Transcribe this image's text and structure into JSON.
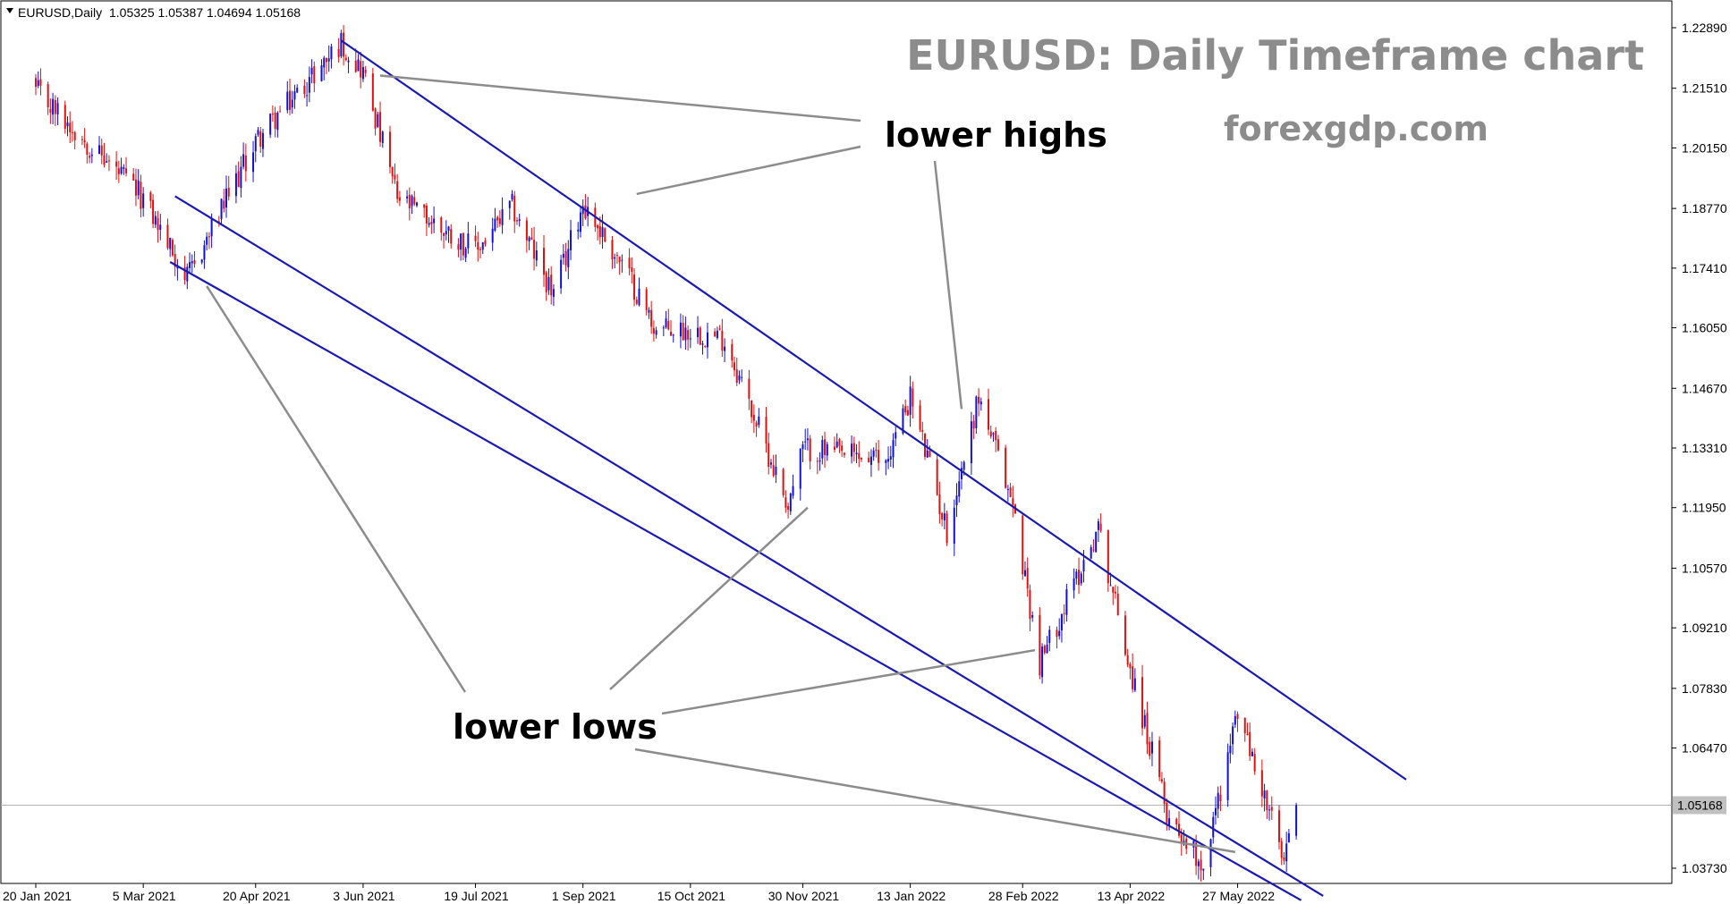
{
  "header": {
    "symbol_timeframe": "EURUSD,Daily",
    "ohlc": "1.05325 1.05387 1.04694 1.05168"
  },
  "colors": {
    "bull": "#1010d8",
    "bear": "#e01010",
    "channel": "#1a1ab0",
    "annotation": "#8c8c8c",
    "price_line": "#b0b0b0",
    "price_box": "#c0c0c0"
  },
  "chart_data": {
    "type": "candlestick",
    "title": "EURUSD: Daily Timeframe chart",
    "watermark": "forexgdp.com",
    "x_ticks": [
      "20 Jan 2021",
      "5 Mar 2021",
      "20 Apr 2021",
      "3 Jun 2021",
      "19 Jul 2021",
      "1 Sep 2021",
      "15 Oct 2021",
      "30 Nov 2021",
      "13 Jan 2022",
      "28 Feb 2022",
      "13 Apr 2022",
      "27 May 2022"
    ],
    "y_ticks": [
      1.2289,
      1.2151,
      1.2015,
      1.1877,
      1.1741,
      1.1605,
      1.1467,
      1.1331,
      1.1195,
      1.1057,
      1.0921,
      1.0783,
      1.0647,
      1.0373
    ],
    "y_tick_labels": [
      "1.22890",
      "1.21510",
      "1.20150",
      "1.18770",
      "1.17410",
      "1.16050",
      "1.14670",
      "1.13310",
      "1.11950",
      "1.10570",
      "1.09210",
      "1.07830",
      "1.06470",
      "1.03730"
    ],
    "ylim": [
      1.0255,
      1.2305
    ],
    "grid": false,
    "current_price": 1.05168,
    "current_price_label": "1.05168",
    "price_path": [
      [
        "20 Jan 2021",
        1.2145
      ],
      [
        "5 Mar 2021",
        1.19
      ],
      [
        "23 Mar 2021",
        1.1715
      ],
      [
        "20 Apr 2021",
        1.203
      ],
      [
        "25 May 2021",
        1.2255
      ],
      [
        "3 Jun 2021",
        1.219
      ],
      [
        "17 Jun 2021",
        1.19
      ],
      [
        "19 Jul 2021",
        1.178
      ],
      [
        "3 Aug 2021",
        1.188
      ],
      [
        "20 Aug 2021",
        1.168
      ],
      [
        "1 Sep 2021",
        1.189
      ],
      [
        "20 Sep 2021",
        1.172
      ],
      [
        "1 Oct 2021",
        1.16
      ],
      [
        "15 Oct 2021",
        1.16
      ],
      [
        "29 Oct 2021",
        1.158
      ],
      [
        "24 Nov 2021",
        1.12
      ],
      [
        "30 Nov 2021",
        1.133
      ],
      [
        "3 Jan 2022",
        1.13
      ],
      [
        "13 Jan 2022",
        1.145
      ],
      [
        "28 Jan 2022",
        1.114
      ],
      [
        "10 Feb 2022",
        1.145
      ],
      [
        "24 Feb 2022",
        1.12
      ],
      [
        "7 Mar 2022",
        1.084
      ],
      [
        "31 Mar 2022",
        1.115
      ],
      [
        "13 Apr 2022",
        1.083
      ],
      [
        "28 Apr 2022",
        1.05
      ],
      [
        "13 May 2022",
        1.038
      ],
      [
        "27 May 2022",
        1.073
      ],
      [
        "10 Jun 2022",
        1.048
      ],
      [
        "15 Jun 2022",
        1.038
      ],
      [
        "20 Jun 2022",
        1.0517
      ]
    ],
    "channel_lines": [
      {
        "from": [
          "25 May 2021",
          1.226
        ],
        "to": [
          "4 Aug 2022",
          1.0575
        ]
      },
      {
        "from": [
          "18 Mar 2021",
          1.1905
        ],
        "to": [
          "1 Jul 2022",
          1.031
        ]
      },
      {
        "from": [
          "16 Mar 2021",
          1.1755
        ],
        "to": [
          "22 Jun 2022",
          1.03
        ]
      }
    ],
    "annotations": [
      {
        "text": "lower highs",
        "targets": [
          [
            "10 Jun 2021",
            1.218
          ],
          [
            "23 Sep 2021",
            1.191
          ],
          [
            "3 Feb 2022",
            1.142
          ]
        ]
      },
      {
        "text": "lower lows",
        "targets": [
          [
            "31 Mar 2021",
            1.17
          ],
          [
            "2 Dec 2021",
            1.1195
          ],
          [
            "5 Mar 2022",
            1.087
          ],
          [
            "26 May 2022",
            1.041
          ]
        ]
      }
    ]
  }
}
